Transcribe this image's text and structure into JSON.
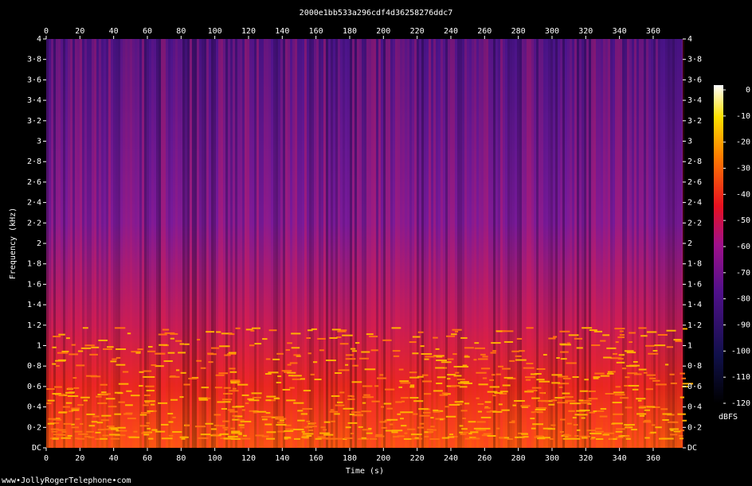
{
  "chart_data": {
    "type": "spectrogram",
    "title": "2000e1bb533a296cdf4d36258276ddc7",
    "x_label": "Time (s)",
    "y_label": "Frequency (kHz)",
    "xlim": [
      0,
      377.5
    ],
    "xticks": [
      0,
      20,
      40,
      60,
      80,
      100,
      120,
      140,
      160,
      180,
      200,
      220,
      240,
      260,
      280,
      300,
      320,
      340,
      360
    ],
    "ylim": [
      0,
      4
    ],
    "yticks": [
      {
        "value": 0,
        "label": "DC"
      },
      {
        "value": 0.2,
        "label": "0·2"
      },
      {
        "value": 0.4,
        "label": "0·4"
      },
      {
        "value": 0.6,
        "label": "0·6"
      },
      {
        "value": 0.8,
        "label": "0·8"
      },
      1,
      {
        "value": 1.2,
        "label": "1·2"
      },
      {
        "value": 1.4,
        "label": "1·4"
      },
      {
        "value": 1.6,
        "label": "1·6"
      },
      {
        "value": 1.8,
        "label": "1·8"
      },
      2,
      {
        "value": 2.2,
        "label": "2·2"
      },
      {
        "value": 2.4,
        "label": "2·4"
      },
      {
        "value": 2.6,
        "label": "2·6"
      },
      {
        "value": 2.8,
        "label": "2·8"
      },
      3,
      {
        "value": 3.2,
        "label": "3·2"
      },
      {
        "value": 3.4,
        "label": "3·4"
      },
      {
        "value": 3.6,
        "label": "3·6"
      },
      {
        "value": 3.8,
        "label": "3·8"
      },
      4
    ],
    "colorbar": {
      "label": "dBFS",
      "lim": [
        -120,
        0
      ],
      "ticks": [
        0,
        -10,
        -20,
        -30,
        -40,
        -50,
        -60,
        -70,
        -80,
        -90,
        -100,
        -110,
        -120
      ]
    }
  },
  "footer": "www•JollyRogerTelephone•com"
}
